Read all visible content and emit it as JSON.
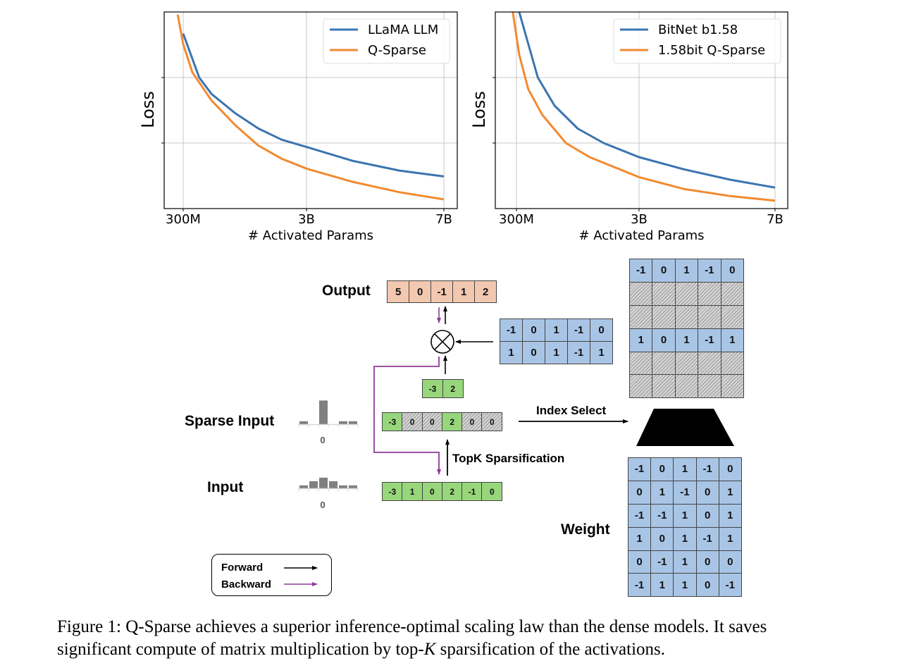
{
  "chart_data": [
    {
      "type": "line",
      "title": "",
      "xlabel": "# Activated Params",
      "ylabel": "Loss",
      "x_unit": "billions of activated params",
      "x_ticks": [
        {
          "value": 0.3,
          "label": "300M"
        },
        {
          "value": 3,
          "label": "3B"
        },
        {
          "value": 7,
          "label": "7B"
        }
      ],
      "y_tick_labels_shown": false,
      "ylim": [
        0,
        3
      ],
      "grid": true,
      "legend": "top-right",
      "series": [
        {
          "name": "LLaMA LLM",
          "color": "#3b74b0",
          "points": [
            [
              0.3,
              2.67
            ],
            [
              0.65,
              2.0
            ],
            [
              0.92,
              1.75
            ],
            [
              1.43,
              1.46
            ],
            [
              1.95,
              1.22
            ],
            [
              2.46,
              1.05
            ],
            [
              3,
              0.94
            ],
            [
              4.33,
              0.73
            ],
            [
              5.71,
              0.58
            ],
            [
              7,
              0.49
            ]
          ]
        },
        {
          "name": "Q-Sparse",
          "color": "#f28a30",
          "points": [
            [
              0.18,
              2.96
            ],
            [
              0.3,
              2.51
            ],
            [
              0.5,
              2.08
            ],
            [
              0.92,
              1.65
            ],
            [
              1.43,
              1.28
            ],
            [
              1.95,
              0.96
            ],
            [
              2.46,
              0.76
            ],
            [
              3,
              0.61
            ],
            [
              4.33,
              0.41
            ],
            [
              5.71,
              0.25
            ],
            [
              7,
              0.14
            ]
          ]
        }
      ]
    },
    {
      "type": "line",
      "title": "",
      "xlabel": "# Activated Params",
      "ylabel": "Loss",
      "x_unit": "billions of activated params",
      "x_ticks": [
        {
          "value": 0.3,
          "label": "300M"
        },
        {
          "value": 3,
          "label": "3B"
        },
        {
          "value": 7,
          "label": "7B"
        }
      ],
      "y_tick_labels_shown": false,
      "ylim": [
        0,
        3
      ],
      "grid": true,
      "legend": "top-right",
      "series": [
        {
          "name": "BitNet b1.58",
          "color": "#3b74b0",
          "points": [
            [
              0.36,
              3.0
            ],
            [
              0.77,
              2.0
            ],
            [
              1.14,
              1.57
            ],
            [
              1.65,
              1.22
            ],
            [
              2.22,
              1.0
            ],
            [
              3,
              0.785
            ],
            [
              4.31,
              0.6
            ],
            [
              5.69,
              0.44
            ],
            [
              7,
              0.32
            ]
          ]
        },
        {
          "name": "1.58bit Q-Sparse",
          "color": "#f28a30",
          "points": [
            [
              0.22,
              3.0
            ],
            [
              0.36,
              2.35
            ],
            [
              0.56,
              1.82
            ],
            [
              0.87,
              1.43
            ],
            [
              1.39,
              1.0
            ],
            [
              1.91,
              0.785
            ],
            [
              3,
              0.48
            ],
            [
              4.31,
              0.3
            ],
            [
              5.69,
              0.19
            ],
            [
              7,
              0.12
            ]
          ]
        }
      ]
    }
  ],
  "diagram": {
    "labels": {
      "output": "Output",
      "sparse_input": "Sparse Input",
      "input": "Input",
      "weight": "Weight",
      "topk": "TopK Sparsification",
      "index_select": "Index Select"
    },
    "output_vector": [
      "5",
      "0",
      "-1",
      "1",
      "2"
    ],
    "selected_weight": [
      [
        "-1",
        "0",
        "1",
        "-1",
        "0"
      ],
      [
        "1",
        "0",
        "1",
        "-1",
        "1"
      ]
    ],
    "selected_activations": [
      "-3",
      "2"
    ],
    "sparse_input": [
      {
        "v": "-3",
        "masked": false
      },
      {
        "v": "0",
        "masked": true
      },
      {
        "v": "0",
        "masked": true
      },
      {
        "v": "2",
        "masked": false
      },
      {
        "v": "0",
        "masked": true
      },
      {
        "v": "0",
        "masked": true
      }
    ],
    "input": [
      "-3",
      "1",
      "0",
      "2",
      "-1",
      "0"
    ],
    "masked_weight": [
      [
        "-1",
        "0",
        "1",
        "-1",
        "0"
      ],
      null,
      null,
      [
        "1",
        "0",
        "1",
        "-1",
        "1"
      ],
      null,
      null
    ],
    "weight": [
      [
        "-1",
        "0",
        "1",
        "-1",
        "0"
      ],
      [
        "0",
        "1",
        "-1",
        "0",
        "1"
      ],
      [
        "-1",
        "-1",
        "1",
        "0",
        "1"
      ],
      [
        "1",
        "0",
        "1",
        "-1",
        "1"
      ],
      [
        "0",
        "-1",
        "1",
        "0",
        "0"
      ],
      [
        "-1",
        "1",
        "1",
        "0",
        "-1"
      ]
    ],
    "sparse_hist": {
      "values": [
        1,
        0,
        8,
        0,
        1,
        1
      ],
      "zero_label": "0"
    },
    "input_hist": {
      "values": [
        1,
        2.4,
        3.6,
        2.4,
        1,
        1
      ],
      "zero_label": "0"
    },
    "legend": {
      "forward": "Forward",
      "backward": "Backward"
    },
    "colors": {
      "forward": "#000000",
      "backward": "#8e3a9a",
      "output": "#f3c8b0",
      "weight": "#a9c5e6",
      "activation": "#98d67c"
    }
  },
  "caption": {
    "line1": "Figure 1: Q-Sparse achieves a superior inference-optimal scaling law than the dense models. It saves",
    "line2_pre": "significant compute of matrix multiplication by top-",
    "line2_var": "K",
    "line2_post": " sparsification of the activations."
  }
}
